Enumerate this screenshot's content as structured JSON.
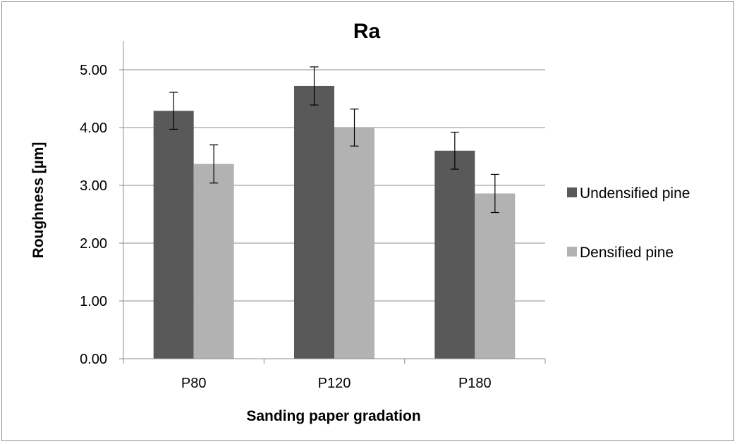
{
  "chart_data": {
    "type": "bar",
    "title": "Ra",
    "xlabel": "Sanding paper gradation",
    "ylabel": "Roughness [µm]",
    "categories": [
      "P80",
      "P120",
      "P180"
    ],
    "ylim": [
      0,
      5.5
    ],
    "yticks": [
      "0.00",
      "1.00",
      "2.00",
      "3.00",
      "4.00",
      "5.00"
    ],
    "grid": true,
    "legend_position": "right",
    "series": [
      {
        "name": "Undensified pine",
        "color": "#595959",
        "values": [
          4.29,
          4.72,
          3.6
        ],
        "errors": [
          0.32,
          0.33,
          0.32
        ]
      },
      {
        "name": "Densified pine",
        "color": "#b2b2b2",
        "values": [
          3.37,
          4.0,
          2.86
        ],
        "errors": [
          0.33,
          0.32,
          0.33
        ]
      }
    ]
  }
}
